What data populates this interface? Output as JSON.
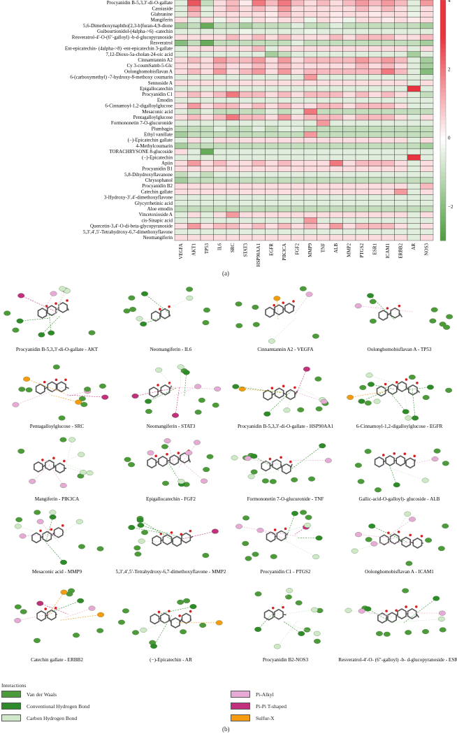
{
  "panel_a_label": "(a)",
  "panel_b_label": "(b)",
  "chart_data": {
    "type": "heatmap",
    "rows": [
      "Procyanidin B-5,3,3′-di-O-gallate",
      "Cassiaside",
      "Glabranine",
      "Mangiferin",
      "5,6-Dimethoxynaphtho[2,3-b]furan-4,9-dione",
      "Guibourtionidol-(4alpha->6) -catechin",
      "Resveratrol-4′-O-(6″-galloyl) -b-d-glucopyranoside",
      "Resveratrol",
      "Ent-epicatechin- (4alpha->8) -ent-epicatechin 3-gallate",
      "7,12-Dioxo-5a-cholan-24-oic acid",
      "Cinnamtannin A2",
      "Cy 3-coumSamb-5-Glc",
      "Oolonghomobisflavan A",
      "6-(carboxymethyl) -7-hydroxy-8-methoxy coumarin",
      "Sennoside A",
      "Epigallocatechin",
      "Procyanidin C1",
      "Emodin",
      "6-Cinnamoyl-1,2-digalloylglucose",
      "Mesaconic acid",
      "Pentagalloylglucose",
      "Formononetin 7-O-glucuronide",
      "Plumbagin",
      "Ethyl vanillate",
      "(−)-Epicatechin gallate",
      "4-Methylcoumarin",
      "TORACHRYSONE 8-glucoside",
      "(−)-Epicatechin",
      "Apiin",
      "Procyanidin B1",
      "5,8-Dihydroxyflavanone",
      "Chrysophanol",
      "Procyanidin B2",
      "Catechin gallate",
      "3-Hydroxy-3′,4′-dimethoxyflavone",
      "Glycyrrhetinic acid",
      "Aloe emodin",
      "Vincetoxioside A",
      "cis-Sinapic acid",
      "Quercetin-3,4′-O-di-beta-glycopyranoside",
      "5,3′,4′,5′-Tetrahydroxy-6,7-dimethoxyflavone",
      "Neomangiferin"
    ],
    "columns": [
      "VEGFA",
      "AKT1",
      "TP53",
      "IL6",
      "SRC",
      "STAT3",
      "HSP90AA1",
      "EGFR",
      "PIK3CA",
      "FGF2",
      "MMP9",
      "TNF",
      "ALB",
      "MMP2",
      "PTGS2",
      "ESR1",
      "ICAM1",
      "ERBB2",
      "AR",
      "NOS3"
    ],
    "values": [
      [
        -0.5,
        2.5,
        -1,
        0.5,
        1,
        0.3,
        2,
        1,
        2,
        1,
        0.5,
        1,
        0.5,
        1,
        1.5,
        1,
        1.5,
        1,
        -0.5,
        1.5
      ],
      [
        -0.5,
        1.5,
        -0.5,
        0.5,
        1,
        0.5,
        1,
        0.5,
        1.5,
        0.5,
        0.5,
        0.5,
        0.5,
        0.5,
        1,
        0.5,
        1,
        0.5,
        -0.5,
        0.5
      ],
      [
        -0.5,
        1,
        -0.5,
        0.5,
        0.5,
        0.5,
        0.5,
        0.3,
        1,
        0.5,
        0.5,
        0.5,
        0.3,
        0.5,
        0.5,
        0.3,
        0.5,
        0.5,
        -0.3,
        0.5
      ],
      [
        0.5,
        -0.5,
        0.5,
        -0.3,
        0.5,
        -0.3,
        0.5,
        0.3,
        0.5,
        0.5,
        -0.3,
        0.5,
        0.3,
        -0.3,
        0.5,
        0.5,
        0.3,
        0.5,
        0.3,
        0.5
      ],
      [
        -1.5,
        -1,
        -2.5,
        -1,
        -1,
        -1.5,
        -1,
        -1,
        -1,
        -0.5,
        -1,
        -1,
        -0.5,
        -1,
        -1,
        -1,
        -1,
        -1,
        -1,
        -1.5
      ],
      [
        -0.5,
        -0.5,
        -0.5,
        -0.5,
        -0.5,
        -0.3,
        -0.5,
        -0.5,
        -0.5,
        -0.5,
        -0.3,
        -0.5,
        -0.5,
        -0.5,
        -0.5,
        -0.5,
        -0.5,
        -0.5,
        -0.5,
        -0.5
      ],
      [
        0.5,
        0.5,
        0.5,
        0.5,
        1,
        0.5,
        1,
        0.5,
        1,
        0.5,
        0.5,
        0.5,
        1,
        0.5,
        1,
        1,
        1,
        0.5,
        0.5,
        1
      ],
      [
        -2,
        -1,
        -2.5,
        -1,
        -1,
        -1,
        -1,
        -1,
        -1,
        -0.5,
        -1,
        -1,
        -1,
        -1,
        -1,
        -1,
        -1,
        -1,
        -1,
        -1.5
      ],
      [
        -0.5,
        0.5,
        0.5,
        0.5,
        0.5,
        0.5,
        1,
        -0.5,
        0.5,
        0.5,
        0.5,
        0.5,
        0.5,
        0.5,
        0.5,
        0.5,
        0.5,
        0.5,
        -0.5,
        0.5
      ],
      [
        -0.5,
        -0.5,
        -0.5,
        -0.5,
        -0.5,
        -0.5,
        -0.5,
        -1.5,
        -1,
        -0.5,
        -0.5,
        -0.5,
        -0.5,
        -0.5,
        -0.5,
        -0.5,
        -0.5,
        -0.5,
        -1.5,
        -0.5
      ],
      [
        0.5,
        1,
        0.5,
        1.5,
        1,
        1,
        1.5,
        0.5,
        1.5,
        0.5,
        1,
        1,
        1,
        1,
        1.5,
        1,
        1.5,
        1,
        -0.5,
        -1.5
      ],
      [
        0.5,
        0.5,
        0.5,
        1,
        0.5,
        0.5,
        1,
        0.5,
        1,
        0.5,
        0.5,
        0.5,
        0.5,
        0.5,
        1,
        0.5,
        1,
        0.5,
        -0.5,
        -1.5
      ],
      [
        0.5,
        1,
        0.5,
        1.5,
        0.5,
        1,
        1.5,
        0.5,
        1.5,
        0.5,
        1,
        1,
        1,
        1,
        1,
        1,
        2,
        1,
        -0.5,
        -2
      ],
      [
        -0.5,
        -0.5,
        -0.5,
        -0.5,
        -0.5,
        -0.5,
        -0.5,
        -0.5,
        -0.5,
        -0.5,
        1.5,
        -0.5,
        -0.5,
        -0.5,
        -0.5,
        -0.5,
        -0.5,
        -0.5,
        -0.5,
        -0.5
      ],
      [
        0.5,
        0.5,
        0.5,
        0.5,
        0.5,
        0.5,
        0.5,
        0.5,
        0.5,
        0.5,
        0.5,
        0.5,
        0.5,
        0.5,
        0.5,
        0.5,
        0.5,
        0.5,
        -0.5,
        0.5
      ],
      [
        -0.5,
        -0.5,
        -0.5,
        -0.5,
        -0.5,
        -0.5,
        -0.5,
        -0.5,
        -0.5,
        -0.5,
        -0.5,
        -0.5,
        -0.5,
        -0.5,
        -0.5,
        -0.5,
        -0.5,
        -0.5,
        3,
        -0.5
      ],
      [
        0.5,
        1,
        0.5,
        1,
        2,
        1,
        1,
        0.5,
        1,
        0.5,
        1,
        1,
        1,
        0.5,
        1,
        0.5,
        1,
        0.5,
        -0.5,
        -1
      ],
      [
        -0.5,
        -0.5,
        -0.5,
        -0.5,
        -0.5,
        -0.5,
        -0.5,
        -0.5,
        -0.5,
        -0.5,
        -0.5,
        -0.5,
        -0.5,
        -0.5,
        -0.5,
        -0.5,
        -0.5,
        -0.5,
        -0.5,
        -0.5
      ],
      [
        0.5,
        1.5,
        0.5,
        1,
        1,
        0.5,
        1,
        0.5,
        1,
        0.5,
        0.5,
        1,
        1,
        0.5,
        1,
        1,
        1,
        0.5,
        -0.5,
        -0.5
      ],
      [
        -0.5,
        -1,
        -0.5,
        -1,
        -1,
        -1,
        -1,
        -0.5,
        -1,
        -0.5,
        2,
        -1,
        -1,
        -1,
        -1,
        -1,
        -1,
        -1,
        -1,
        -1
      ],
      [
        0.5,
        1,
        0.5,
        1,
        2,
        1,
        1,
        0.5,
        1.5,
        0.5,
        1,
        1,
        1,
        0.5,
        1,
        1,
        1,
        0.5,
        -0.5,
        0.5
      ],
      [
        -0.5,
        -0.5,
        -0.5,
        -0.5,
        -0.5,
        -0.5,
        -0.5,
        -0.5,
        -0.5,
        -0.5,
        -0.5,
        1.5,
        -0.5,
        -0.5,
        -0.5,
        -0.5,
        -0.5,
        -0.5,
        -0.5,
        -0.5
      ],
      [
        -1,
        -1,
        -1,
        -0.5,
        -1,
        -1,
        -0.5,
        -1,
        -0.5,
        -0.5,
        -1,
        -1,
        -1,
        -1,
        -1,
        -1,
        -1,
        -1,
        -1,
        -1
      ],
      [
        -1.5,
        -1,
        -1,
        -1,
        -1,
        -1,
        -1,
        -1,
        -1,
        -1,
        1.5,
        -1,
        -1,
        -1,
        -1,
        -1,
        -1,
        -1,
        -1,
        -1
      ],
      [
        -0.5,
        0.5,
        -0.5,
        0.5,
        0.5,
        0.5,
        0.5,
        0.5,
        0.5,
        0.5,
        0.5,
        0.5,
        0.5,
        0.5,
        0.5,
        0.5,
        0.5,
        0.5,
        -0.5,
        0.5
      ],
      [
        -1.5,
        -1,
        -1,
        -1,
        -1,
        -1,
        -1,
        -1,
        -1,
        -1,
        -1,
        -1,
        -1,
        -1,
        -1,
        -1,
        -1,
        -1,
        -1,
        -1.5
      ],
      [
        0.5,
        -0.5,
        -2.5,
        -0.5,
        -0.5,
        -0.5,
        -0.5,
        -0.5,
        -0.5,
        -0.5,
        -0.5,
        -0.5,
        -0.5,
        -0.5,
        -0.5,
        -0.5,
        -0.5,
        -0.5,
        -0.5,
        -0.5
      ],
      [
        -0.5,
        -0.5,
        -0.5,
        -0.5,
        -0.5,
        -0.5,
        -0.5,
        -0.5,
        -0.5,
        -0.5,
        -0.5,
        -0.5,
        -0.5,
        -0.5,
        -0.5,
        -0.5,
        -0.5,
        -0.5,
        3,
        -0.5
      ],
      [
        0.5,
        1.5,
        0.5,
        1,
        0.5,
        0.5,
        1,
        0.5,
        1,
        0.5,
        0.5,
        0.5,
        2,
        0.5,
        1,
        1,
        1,
        0.5,
        -0.5,
        0.5
      ],
      [
        0.5,
        0.5,
        0.5,
        0.5,
        0.5,
        0.5,
        0.5,
        0.5,
        0.5,
        0.5,
        0.5,
        0.5,
        0.5,
        0.5,
        0.5,
        0.5,
        0.5,
        0.5,
        -0.5,
        0.5
      ],
      [
        -1,
        -0.5,
        -1,
        -0.5,
        -0.5,
        -0.5,
        -0.5,
        -0.5,
        -0.5,
        -0.5,
        -0.5,
        -0.5,
        -0.5,
        -0.5,
        -0.5,
        -0.5,
        -0.5,
        -0.5,
        -0.5,
        -0.5
      ],
      [
        -1.5,
        -1,
        -1,
        -1,
        -1,
        -1,
        -1,
        -1,
        -1,
        -1,
        -1,
        -1,
        -1,
        -1,
        -1,
        -1,
        -1,
        -1,
        -1,
        -1
      ],
      [
        0.5,
        0.5,
        0.5,
        0.5,
        0.5,
        0.5,
        0.5,
        0.5,
        0.5,
        0.5,
        0.5,
        0.5,
        0.5,
        0.5,
        0.5,
        0.5,
        0.5,
        0.5,
        -0.5,
        1
      ],
      [
        0.5,
        0.5,
        0.5,
        0.5,
        0.5,
        0.5,
        0.5,
        0.5,
        0.5,
        0.5,
        0.5,
        0.5,
        0.5,
        0.5,
        0.5,
        0.5,
        0.5,
        1.5,
        -0.5,
        0.5
      ],
      [
        -0.5,
        -0.5,
        -0.5,
        -0.5,
        -0.5,
        -0.5,
        -0.5,
        -0.5,
        -0.5,
        -0.5,
        -0.5,
        -0.5,
        -0.5,
        -0.5,
        -0.5,
        -0.5,
        -0.5,
        -0.5,
        -0.5,
        -0.5
      ],
      [
        -0.5,
        -0.5,
        -0.5,
        -0.5,
        -0.5,
        -0.5,
        -0.5,
        -0.5,
        -0.5,
        -0.5,
        -0.5,
        -0.5,
        -0.5,
        -0.5,
        -0.5,
        -0.5,
        -0.5,
        -0.5,
        -0.5,
        -0.5
      ],
      [
        -1,
        -1,
        -1,
        -1,
        -1,
        -1,
        -1,
        -1,
        -1,
        -1,
        -1,
        -1,
        -1,
        -1,
        -1,
        -1,
        -1,
        -1,
        -1,
        -1
      ],
      [
        -0.5,
        0.5,
        -0.5,
        0.5,
        1.5,
        0.5,
        0.5,
        0.5,
        0.5,
        0.5,
        0.5,
        0.5,
        0.5,
        0.5,
        0.5,
        0.5,
        0.5,
        0.5,
        -0.5,
        0.5
      ],
      [
        -0.5,
        -0.5,
        -0.5,
        -0.5,
        -0.5,
        -0.5,
        -0.5,
        -0.5,
        -0.5,
        -0.5,
        1.5,
        -0.5,
        -0.5,
        -0.5,
        -0.5,
        -0.5,
        -0.5,
        -0.5,
        -0.5,
        -0.5
      ],
      [
        0.5,
        1.5,
        0.5,
        1,
        1,
        0.5,
        1,
        0.5,
        1,
        0.5,
        1,
        0.5,
        1.5,
        0.5,
        1,
        1,
        1,
        0.5,
        -0.5,
        0.5
      ],
      [
        -0.5,
        -0.5,
        -0.5,
        -0.5,
        -0.5,
        -0.5,
        -0.5,
        -0.5,
        -0.5,
        -0.5,
        -0.5,
        -0.5,
        -0.5,
        -0.5,
        -0.5,
        -0.5,
        -0.5,
        -0.5,
        -0.5,
        -0.5
      ],
      [
        0.5,
        0.5,
        0.5,
        0.5,
        0.5,
        0.5,
        0.5,
        0.5,
        0.5,
        0.5,
        0.5,
        0.5,
        0.5,
        0.5,
        0.5,
        0.5,
        0.5,
        0.5,
        -0.5,
        0.5
      ]
    ],
    "colorbar": {
      "ticks": [
        4,
        2,
        0,
        -2
      ],
      "min": -3,
      "max": 4,
      "low_color": "#4a9a3a",
      "mid_color": "#ffffff",
      "high_color": "#e8343e"
    }
  },
  "docking_panels": [
    "Procyanidin B-5,3,3′-di-O-gallate - AKT",
    "Neomangiferin - IL6",
    "Cinnamtannin A2 - VEGFA",
    "Oolonghomobisflavan A - TP53",
    "Pentagalloylglucose - SRC",
    "Neomangiferin - STAT3",
    "Procyanidin B-5,3,3′-di-O-gallate - HSP90AA1",
    "6-Cinnamoyl-1,2-digalloylglucose - EGFR",
    "Mangiferin - PIK3CA",
    "Epigallocatechin - FGF2",
    "Formononetin 7-O-glucuronide - TNF",
    "Gallic-acid-O-galloyl)- glucoside - ALB",
    "Mesaconic acid - MMP9",
    "5,3′,4′,5′-Tetrahydroxy-6,7-dimethoxyflavone - MMP2",
    "Procyanidin C1 - PTGS2",
    "Oolonghomobisflavan A - ICAM1",
    "Catechin gallate - ERBB2",
    "(−)-Epicatechin - AR",
    "Procyanidin B2-NOS3",
    "Resveratrol-4′-O- (6″-galloyl) -b- d-glucopyranoside - ESR1"
  ],
  "legend": {
    "title": "Interactions",
    "items": [
      {
        "label": "Van der Waals",
        "color": "#4d9a3a"
      },
      {
        "label": "Conventional Hydrogen Bond",
        "color": "#2f8a2a"
      },
      {
        "label": "Carbon Hydrogen Bond",
        "color": "#cfe8c8"
      },
      {
        "label": "Pi-Alkyl",
        "color": "#e7a9d6"
      },
      {
        "label": "Pi-Pi T-shaped",
        "color": "#c2307d"
      },
      {
        "label": "Sulfur-X",
        "color": "#f59b12"
      }
    ]
  }
}
